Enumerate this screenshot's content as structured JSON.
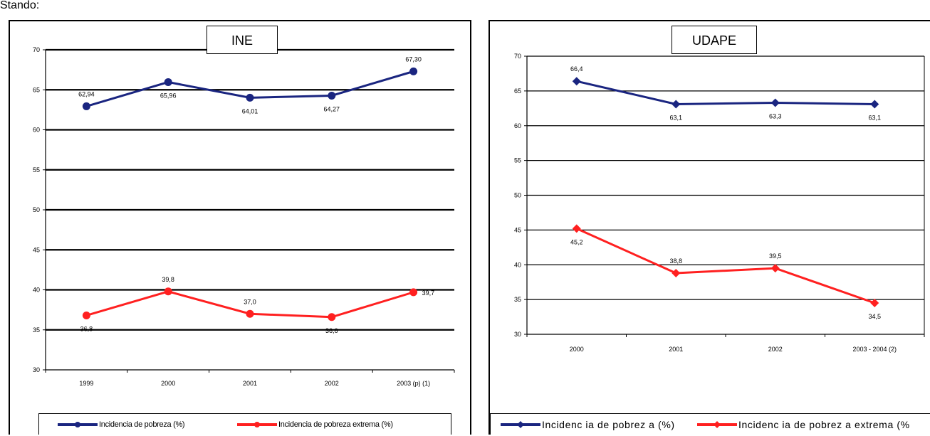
{
  "top_text": "Stando:",
  "colors": {
    "pobreza": "#1a2580",
    "extrema": "#ff2020",
    "frame": "#000000"
  },
  "panels": {
    "ine": {
      "title": "INE",
      "legend": [
        "Incidencia de pobreza (%)",
        "Incidencia de pobreza extrema (%)"
      ]
    },
    "udape": {
      "title": "UDAPE",
      "legend": [
        "Incidenc ia de pobrez a (%)",
        "Incidenc ia de pobrez a extrema (%"
      ]
    }
  },
  "chart_data": [
    {
      "type": "line",
      "title": "INE",
      "categories": [
        "1999",
        "2000",
        "2001",
        "2002",
        "2003 (p) (1)"
      ],
      "ylim": [
        30,
        70
      ],
      "yticks": [
        "30",
        "35",
        "40",
        "45",
        "50",
        "55",
        "60",
        "65",
        "70"
      ],
      "grid": true,
      "legend_position": "bottom",
      "marker": "circle",
      "series": [
        {
          "name": "Incidencia de pobreza (%)",
          "values": [
            62.94,
            65.96,
            64.01,
            64.27,
            67.3
          ],
          "labels": [
            "62,94",
            "65,96",
            "64,01",
            "64,27",
            "67,30"
          ],
          "label_pos": [
            "above",
            "below",
            "below",
            "below",
            "above"
          ]
        },
        {
          "name": "Incidencia de pobreza extrema (%)",
          "values": [
            36.8,
            39.8,
            37.0,
            36.6,
            39.7
          ],
          "labels": [
            "36,8",
            "39,8",
            "37,0",
            "36,6",
            "39,7"
          ],
          "label_pos": [
            "below",
            "above",
            "above",
            "below",
            "right"
          ]
        }
      ]
    },
    {
      "type": "line",
      "title": "UDAPE",
      "categories": [
        "2000",
        "2001",
        "2002",
        "2003 - 2004 (2)"
      ],
      "ylim": [
        30,
        70
      ],
      "yticks": [
        "30",
        "35",
        "40",
        "45",
        "50",
        "55",
        "60",
        "65",
        "70"
      ],
      "grid": true,
      "legend_position": "bottom",
      "marker": "diamond",
      "series": [
        {
          "name": "Incidenc ia de pobrez a (%)",
          "values": [
            66.4,
            63.1,
            63.3,
            63.1
          ],
          "labels": [
            "66,4",
            "63,1",
            "63,3",
            "63,1"
          ],
          "label_pos": [
            "above",
            "below",
            "below",
            "below"
          ]
        },
        {
          "name": "Incidenc ia de pobrez a extrema (%",
          "values": [
            45.2,
            38.8,
            39.5,
            34.5
          ],
          "labels": [
            "45,2",
            "38,8",
            "39,5",
            "34,5"
          ],
          "label_pos": [
            "below",
            "above",
            "above",
            "below"
          ]
        }
      ]
    }
  ]
}
